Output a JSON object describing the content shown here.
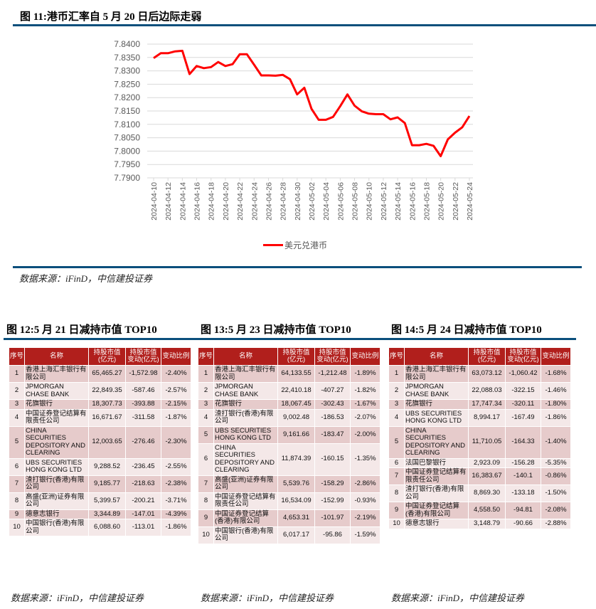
{
  "figure11": {
    "title": "图 11:港币汇率自 5 月 20 日后边际走弱",
    "source": "数据来源：iFinD，中信建投证券"
  },
  "chart_data": {
    "type": "line",
    "title": "图 11:港币汇率自 5 月 20 日后边际走弱",
    "xlabel": "",
    "ylabel": "",
    "ylim": [
      7.79,
      7.84
    ],
    "yticks": [
      "7.8400",
      "7.8350",
      "7.8300",
      "7.8250",
      "7.8200",
      "7.8150",
      "7.8100",
      "7.8050",
      "7.8000",
      "7.7950",
      "7.7900"
    ],
    "xticks": [
      "2024-04-10",
      "2024-04-12",
      "2024-04-14",
      "2024-04-16",
      "2024-04-18",
      "2024-04-20",
      "2024-04-22",
      "2024-04-24",
      "2024-04-26",
      "2024-04-28",
      "2024-04-30",
      "2024-05-02",
      "2024-05-04",
      "2024-05-06",
      "2024-05-08",
      "2024-05-10",
      "2024-05-12",
      "2024-05-14",
      "2024-05-16",
      "2024-05-18",
      "2024-05-20",
      "2024-05-22",
      "2024-05-24"
    ],
    "x_start": "2024-04-10",
    "x_end": "2024-05-24",
    "grid": true,
    "legend_position": "bottom",
    "color": "#ff0000",
    "series": [
      {
        "name": "美元兑港币",
        "values": [
          7.8348,
          7.8366,
          7.8366,
          7.8373,
          7.8375,
          7.8288,
          7.8318,
          7.831,
          7.8314,
          7.8333,
          7.8318,
          7.8325,
          7.8362,
          7.8362,
          7.8323,
          7.8283,
          7.8283,
          7.8282,
          7.8285,
          7.8269,
          7.8212,
          7.8237,
          7.8158,
          7.8117,
          7.8117,
          7.8128,
          7.8168,
          7.8212,
          7.817,
          7.8149,
          7.814,
          7.8138,
          7.8138,
          7.8119,
          7.8126,
          7.8105,
          7.8022,
          7.8022,
          7.8027,
          7.802,
          7.7981,
          7.8044,
          7.8069,
          7.8089,
          7.8131
        ]
      }
    ]
  },
  "tables": [
    {
      "title": "图 12:5 月 21 日减持市值 TOP10",
      "source": "数据来源：iFinD，中信建投证券",
      "headers": [
        "序号",
        "名称",
        "持股市值(亿元)",
        "持股市值变动(亿元)",
        "变动比例"
      ],
      "rows": [
        [
          "1",
          "香港上海汇丰银行有限公司",
          "65,465.27",
          "-1,572.98",
          "-2.40%"
        ],
        [
          "2",
          "JPMORGAN CHASE BANK",
          "22,849.35",
          "-587.46",
          "-2.57%"
        ],
        [
          "3",
          "花旗银行",
          "18,307.73",
          "-393.88",
          "-2.15%"
        ],
        [
          "4",
          "中国证券登记结算有限责任公司",
          "16,671.67",
          "-311.58",
          "-1.87%"
        ],
        [
          "5",
          "CHINA SECURITIES DEPOSITORY AND CLEARING",
          "12,003.65",
          "-276.46",
          "-2.30%"
        ],
        [
          "6",
          "UBS SECURITIES HONG KONG LTD",
          "9,288.52",
          "-236.45",
          "-2.55%"
        ],
        [
          "7",
          "渣打银行(香港)有限公司",
          "9,185.77",
          "-218.63",
          "-2.38%"
        ],
        [
          "8",
          "高盛(亚洲)证券有限公司",
          "5,399.57",
          "-200.21",
          "-3.71%"
        ],
        [
          "9",
          "德意志银行",
          "3,344.89",
          "-147.01",
          "-4.39%"
        ],
        [
          "10",
          "中国银行(香港)有限公司",
          "6,088.60",
          "-113.01",
          "-1.86%"
        ]
      ]
    },
    {
      "title": "图 13:5 月 23 日减持市值 TOP10",
      "source": "数据来源：iFinD，中信建投证券",
      "headers": [
        "序号",
        "名称",
        "持股市值(亿元)",
        "持股市值变动(亿元)",
        "变动比例"
      ],
      "rows": [
        [
          "1",
          "香港上海汇丰银行有限公司",
          "64,133.55",
          "-1,212.48",
          "-1.89%"
        ],
        [
          "2",
          "JPMORGAN CHASE BANK",
          "22,410.18",
          "-407.27",
          "-1.82%"
        ],
        [
          "3",
          "花旗银行",
          "18,067.45",
          "-302.43",
          "-1.67%"
        ],
        [
          "4",
          "渣打银行(香港)有限公司",
          "9,002.48",
          "-186.53",
          "-2.07%"
        ],
        [
          "5",
          "UBS SECURITIES HONG KONG LTD",
          "9,161.66",
          "-183.47",
          "-2.00%"
        ],
        [
          "6",
          "CHINA SECURITIES DEPOSITORY AND CLEARING",
          "11,874.39",
          "-160.15",
          "-1.35%"
        ],
        [
          "7",
          "高盛(亚洲)证券有限公司",
          "5,539.76",
          "-158.29",
          "-2.86%"
        ],
        [
          "8",
          "中国证券登记结算有限责任公司",
          "16,534.09",
          "-152.99",
          "-0.93%"
        ],
        [
          "9",
          "中国证券登记结算(香港)有限公司",
          "4,653.31",
          "-101.97",
          "-2.19%"
        ],
        [
          "10",
          "中国银行(香港)有限公司",
          "6,017.17",
          "-95.86",
          "-1.59%"
        ]
      ]
    },
    {
      "title": "图 14:5 月 24 日减持市值 TOP10",
      "source": "数据来源：iFinD，中信建投证券",
      "headers": [
        "序号",
        "名称",
        "持股市值(亿元)",
        "持股市值变动(亿元)",
        "变动比例"
      ],
      "rows": [
        [
          "1",
          "香港上海汇丰银行有限公司",
          "63,073.12",
          "-1,060.42",
          "-1.68%"
        ],
        [
          "2",
          "JPMORGAN CHASE BANK",
          "22,088.03",
          "-322.15",
          "-1.46%"
        ],
        [
          "3",
          "花旗银行",
          "17,747.34",
          "-320.11",
          "-1.80%"
        ],
        [
          "4",
          "UBS SECURITIES HONG KONG LTD",
          "8,994.17",
          "-167.49",
          "-1.86%"
        ],
        [
          "5",
          "CHINA SECURITIES DEPOSITORY AND CLEARING",
          "11,710.05",
          "-164.33",
          "-1.40%"
        ],
        [
          "6",
          "法国巴黎银行",
          "2,923.09",
          "-156.28",
          "-5.35%"
        ],
        [
          "7",
          "中国证券登记结算有限责任公司",
          "16,383.67",
          "-140.1",
          "-0.86%"
        ],
        [
          "8",
          "渣打银行(香港)有限公司",
          "8,869.30",
          "-133.18",
          "-1.50%"
        ],
        [
          "9",
          "中国证券登记结算(香港)有限公司",
          "4,558.50",
          "-94.81",
          "-2.08%"
        ],
        [
          "10",
          "德意志银行",
          "3,148.79",
          "-90.66",
          "-2.88%"
        ]
      ]
    }
  ]
}
